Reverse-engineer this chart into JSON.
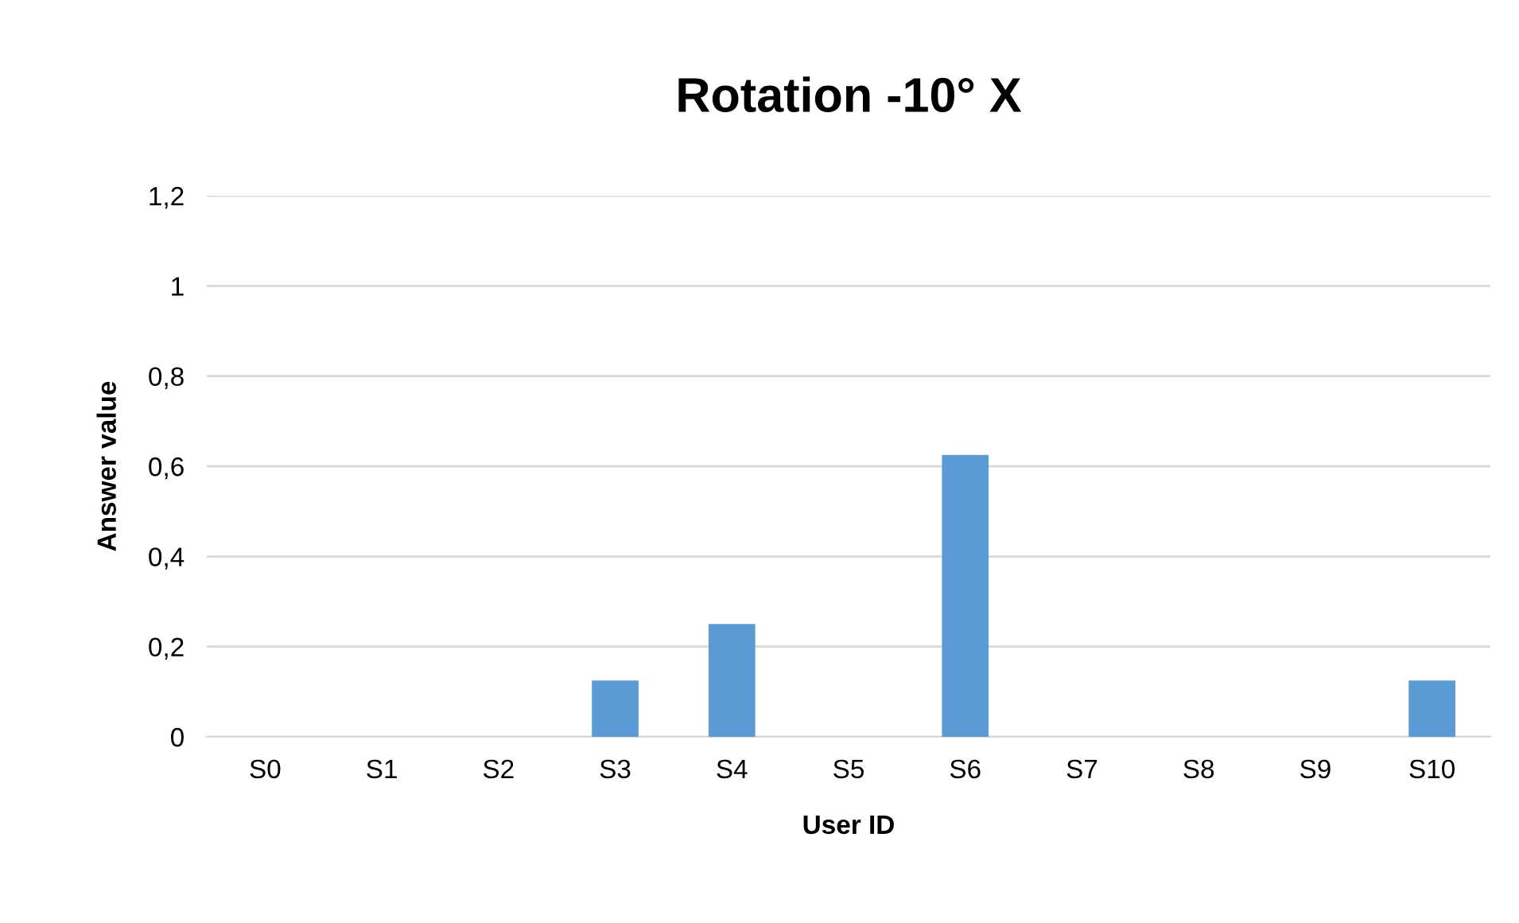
{
  "chart_data": {
    "type": "bar",
    "title": "Rotation -10° X",
    "xlabel": "User ID",
    "ylabel": "Answer value",
    "categories": [
      "S0",
      "S1",
      "S2",
      "S3",
      "S4",
      "S5",
      "S6",
      "S7",
      "S8",
      "S9",
      "S10"
    ],
    "values": [
      0,
      0,
      0,
      0.125,
      0.25,
      0,
      0.625,
      0,
      0,
      0,
      0.125
    ],
    "color": "#5b9bd5",
    "ylim": [
      0,
      1.2
    ],
    "yticks": [
      0,
      {
        "value": 0.2,
        "label": "0,2"
      },
      {
        "value": 0.4,
        "label": "0,4"
      },
      {
        "value": 0.6,
        "label": "0,6"
      },
      {
        "value": 0.8,
        "label": "0,8"
      },
      1,
      {
        "value": 1.2,
        "label": "1,2"
      }
    ],
    "grid": "y",
    "legend": false
  }
}
